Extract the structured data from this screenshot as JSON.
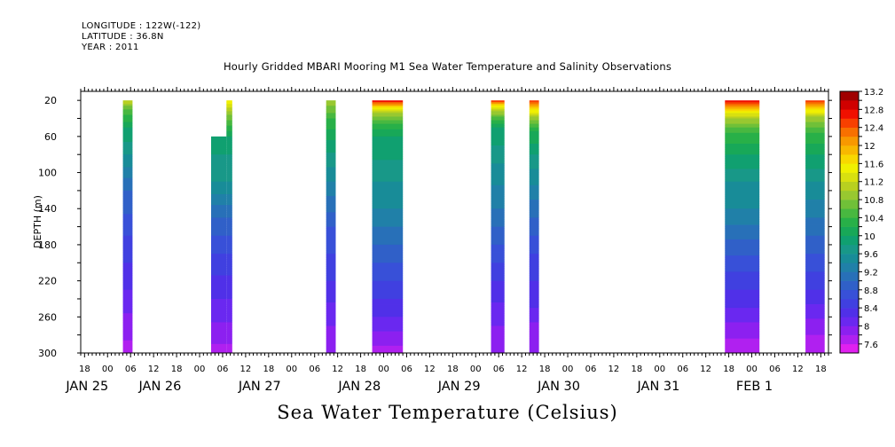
{
  "header": {
    "longitude": "LONGITUDE : 122W(-122)",
    "latitude": "LATITUDE : 36.8N",
    "year": "YEAR : 2011"
  },
  "chart_data": {
    "type": "heatmap",
    "title": "Hourly Gridded MBARI Mooring M1 Sea Water Temperature and Salinity Observations",
    "xlabel": "",
    "ylabel": "DEPTH (m)",
    "bottom_label": "Sea Water Temperature (Celsius)",
    "x_unit": "hours since JAN 25 00:00",
    "xlim": [
      -7,
      188
    ],
    "ylim": [
      300,
      10
    ],
    "y_reversed": true,
    "y_ticks": [
      20,
      60,
      100,
      140,
      180,
      220,
      260,
      300
    ],
    "x_tick_labels": [
      {
        "x": -6,
        "label": "18"
      },
      {
        "x": 0,
        "label": "00"
      },
      {
        "x": 6,
        "label": "06"
      },
      {
        "x": 12,
        "label": "12"
      },
      {
        "x": 18,
        "label": "18"
      },
      {
        "x": 24,
        "label": "00"
      },
      {
        "x": 30,
        "label": "06"
      },
      {
        "x": 36,
        "label": "12"
      },
      {
        "x": 42,
        "label": "18"
      },
      {
        "x": 48,
        "label": "00"
      },
      {
        "x": 54,
        "label": "06"
      },
      {
        "x": 60,
        "label": "12"
      },
      {
        "x": 66,
        "label": "18"
      },
      {
        "x": 72,
        "label": "00"
      },
      {
        "x": 78,
        "label": "06"
      },
      {
        "x": 84,
        "label": "12"
      },
      {
        "x": 90,
        "label": "18"
      },
      {
        "x": 96,
        "label": "00"
      },
      {
        "x": 102,
        "label": "06"
      },
      {
        "x": 108,
        "label": "12"
      },
      {
        "x": 114,
        "label": "18"
      },
      {
        "x": 120,
        "label": "00"
      },
      {
        "x": 126,
        "label": "06"
      },
      {
        "x": 132,
        "label": "12"
      },
      {
        "x": 138,
        "label": "18"
      },
      {
        "x": 144,
        "label": "00"
      },
      {
        "x": 150,
        "label": "06"
      },
      {
        "x": 156,
        "label": "12"
      },
      {
        "x": 162,
        "label": "18"
      },
      {
        "x": 168,
        "label": "00"
      },
      {
        "x": 174,
        "label": "06"
      },
      {
        "x": 180,
        "label": "12"
      },
      {
        "x": 186,
        "label": "18"
      }
    ],
    "date_labels": [
      {
        "x": -6,
        "label": "JAN 25"
      },
      {
        "x": 13,
        "label": "JAN 26"
      },
      {
        "x": 39,
        "label": "JAN 27"
      },
      {
        "x": 65,
        "label": "JAN 28"
      },
      {
        "x": 91,
        "label": "JAN 29"
      },
      {
        "x": 117,
        "label": "JAN 30"
      },
      {
        "x": 143,
        "label": "JAN 31"
      },
      {
        "x": 168,
        "label": "FEB  1"
      }
    ],
    "colorbar": {
      "min": 7.4,
      "step": 0.2,
      "colors": [
        "#e020f0",
        "#b020f0",
        "#8c20f0",
        "#6a28f0",
        "#5030e8",
        "#4040e0",
        "#3850d8",
        "#3060c8",
        "#2870b8",
        "#2080a8",
        "#188c98",
        "#189888",
        "#10a070",
        "#18a858",
        "#28b048",
        "#48b840",
        "#70c038",
        "#98c830",
        "#b8d020",
        "#d8e010",
        "#f0f000",
        "#f8d800",
        "#f8b800",
        "#f89800",
        "#f87000",
        "#f84000",
        "#f01000",
        "#d00000",
        "#a00000"
      ],
      "tick_labels": [
        "7.6",
        "8",
        "8.4",
        "8.8",
        "9.2",
        "9.6",
        "10",
        "10.4",
        "10.8",
        "11.2",
        "11.6",
        "12",
        "12.4",
        "12.8",
        "13.2"
      ]
    },
    "segments": [
      {
        "x0": 4,
        "x1": 6.5,
        "top": 20,
        "profile": [
          [
            20,
            11.2
          ],
          [
            30,
            10.6
          ],
          [
            50,
            10.0
          ],
          [
            80,
            9.6
          ],
          [
            120,
            9.0
          ],
          [
            170,
            8.6
          ],
          [
            230,
            8.2
          ],
          [
            270,
            7.9
          ],
          [
            300,
            7.7
          ]
        ]
      },
      {
        "x0": 27,
        "x1": 31,
        "top": 60,
        "profile": [
          [
            60,
            10.0
          ],
          [
            80,
            9.8
          ],
          [
            110,
            9.6
          ],
          [
            150,
            9.0
          ],
          [
            190,
            8.6
          ],
          [
            240,
            8.2
          ],
          [
            280,
            7.9
          ],
          [
            300,
            7.7
          ]
        ]
      },
      {
        "x0": 31,
        "x1": 32.5,
        "top": 20,
        "profile": [
          [
            20,
            11.6
          ],
          [
            35,
            10.8
          ],
          [
            60,
            10.0
          ],
          [
            80,
            9.8
          ],
          [
            110,
            9.6
          ],
          [
            150,
            9.0
          ],
          [
            190,
            8.6
          ],
          [
            240,
            8.2
          ],
          [
            280,
            7.9
          ],
          [
            300,
            7.7
          ]
        ]
      },
      {
        "x0": 57,
        "x1": 59.5,
        "top": 20,
        "profile": [
          [
            20,
            11.0
          ],
          [
            40,
            10.4
          ],
          [
            70,
            9.9
          ],
          [
            110,
            9.4
          ],
          [
            160,
            8.8
          ],
          [
            220,
            8.4
          ],
          [
            270,
            8.0
          ],
          [
            300,
            7.9
          ]
        ]
      },
      {
        "x0": 69,
        "x1": 77,
        "top": 20,
        "profile": [
          [
            20,
            12.8
          ],
          [
            24,
            12.2
          ],
          [
            28,
            11.6
          ],
          [
            35,
            11.0
          ],
          [
            45,
            10.4
          ],
          [
            60,
            10.0
          ],
          [
            85,
            9.8
          ],
          [
            110,
            9.6
          ],
          [
            140,
            9.4
          ],
          [
            180,
            9.0
          ],
          [
            220,
            8.6
          ],
          [
            260,
            8.2
          ],
          [
            285,
            7.9
          ],
          [
            300,
            7.7
          ]
        ]
      },
      {
        "x0": 100,
        "x1": 103.5,
        "top": 20,
        "profile": [
          [
            20,
            12.6
          ],
          [
            26,
            11.6
          ],
          [
            35,
            10.8
          ],
          [
            50,
            10.0
          ],
          [
            90,
            9.6
          ],
          [
            140,
            9.2
          ],
          [
            180,
            8.8
          ],
          [
            220,
            8.4
          ],
          [
            270,
            8.0
          ],
          [
            300,
            7.8
          ]
        ]
      },
      {
        "x0": 110,
        "x1": 112.5,
        "top": 20,
        "profile": [
          [
            20,
            12.6
          ],
          [
            28,
            11.8
          ],
          [
            38,
            11.0
          ],
          [
            55,
            10.2
          ],
          [
            80,
            9.8
          ],
          [
            130,
            9.2
          ],
          [
            190,
            8.6
          ],
          [
            250,
            8.2
          ],
          [
            275,
            7.9
          ],
          [
            300,
            7.8
          ]
        ]
      },
      {
        "x0": 161,
        "x1": 170,
        "top": 20,
        "profile": [
          [
            20,
            12.8
          ],
          [
            26,
            12.2
          ],
          [
            32,
            11.6
          ],
          [
            40,
            11.0
          ],
          [
            55,
            10.4
          ],
          [
            80,
            10.0
          ],
          [
            110,
            9.6
          ],
          [
            140,
            9.4
          ],
          [
            175,
            9.0
          ],
          [
            210,
            8.6
          ],
          [
            250,
            8.2
          ],
          [
            275,
            7.9
          ],
          [
            300,
            7.6
          ]
        ]
      },
      {
        "x0": 182,
        "x1": 187,
        "top": 20,
        "profile": [
          [
            20,
            12.6
          ],
          [
            28,
            11.8
          ],
          [
            38,
            11.0
          ],
          [
            55,
            10.4
          ],
          [
            80,
            10.0
          ],
          [
            110,
            9.6
          ],
          [
            150,
            9.2
          ],
          [
            190,
            8.8
          ],
          [
            230,
            8.4
          ],
          [
            270,
            7.9
          ],
          [
            300,
            7.6
          ]
        ]
      }
    ]
  }
}
